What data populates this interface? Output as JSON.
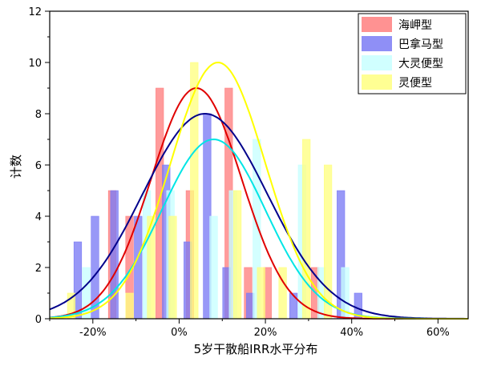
{
  "chart_data": {
    "type": "bar",
    "xlabel": "5岁干散船IRR水平分布",
    "ylabel": "计数",
    "xlim": [
      -30,
      67
    ],
    "ylim": [
      0,
      12
    ],
    "x_ticks": [
      -20,
      0,
      20,
      40,
      60
    ],
    "x_tick_labels": [
      "-20%",
      "0%",
      "20%",
      "40%",
      "60%"
    ],
    "y_ticks": [
      0,
      2,
      4,
      6,
      8,
      10,
      12
    ],
    "y_tick_labels": [
      "0",
      "2",
      "4",
      "6",
      "8",
      "10",
      "12"
    ],
    "bin_width": 8,
    "bin_centers": [
      -24,
      -16,
      -8,
      0,
      8,
      16,
      24,
      32,
      40
    ],
    "legend_position": "top-right",
    "series": [
      {
        "name": "海岬型",
        "color": "#ff7f7f",
        "bars": [
          {
            "x": -15.5,
            "count": 5
          },
          {
            "x": -11.5,
            "count": 4
          },
          {
            "x": -4.5,
            "count": 9
          },
          {
            "x": 2.5,
            "count": 5
          },
          {
            "x": 11.5,
            "count": 9
          },
          {
            "x": 16,
            "count": 2
          },
          {
            "x": 20.5,
            "count": 2
          },
          {
            "x": 31.5,
            "count": 2
          }
        ],
        "curve": {
          "mean": 4,
          "sd": 10.5,
          "peak": 9,
          "color": "#e00000"
        }
      },
      {
        "name": "巴拿马型",
        "color": "#7b7bf5",
        "bars": [
          {
            "x": -23.5,
            "count": 3
          },
          {
            "x": -19.5,
            "count": 4
          },
          {
            "x": -15,
            "count": 5
          },
          {
            "x": -9.5,
            "count": 4
          },
          {
            "x": -3,
            "count": 6
          },
          {
            "x": 2,
            "count": 3
          },
          {
            "x": 6.5,
            "count": 8
          },
          {
            "x": 11,
            "count": 2
          },
          {
            "x": 16.5,
            "count": 1
          },
          {
            "x": 26.5,
            "count": 1
          },
          {
            "x": 37.5,
            "count": 5
          },
          {
            "x": 41.5,
            "count": 1
          }
        ],
        "curve": {
          "mean": 6,
          "sd": 14.5,
          "peak": 8,
          "color": "#00008b"
        }
      },
      {
        "name": "大灵便型",
        "color": "#c8ffff",
        "bars": [
          {
            "x": -21.5,
            "count": 2
          },
          {
            "x": -7.5,
            "count": 5
          },
          {
            "x": -2,
            "count": 5
          },
          {
            "x": 8,
            "count": 4
          },
          {
            "x": 12.5,
            "count": 5
          },
          {
            "x": 18,
            "count": 7
          },
          {
            "x": 28.5,
            "count": 6
          },
          {
            "x": 33,
            "count": 2
          },
          {
            "x": 38.5,
            "count": 2
          }
        ],
        "curve": {
          "mean": 8,
          "sd": 12,
          "peak": 7,
          "color": "#00e5e5"
        }
      },
      {
        "name": "灵便型",
        "color": "#ffff80",
        "bars": [
          {
            "x": -25,
            "count": 1
          },
          {
            "x": -11.5,
            "count": 1
          },
          {
            "x": -6.5,
            "count": 4
          },
          {
            "x": -1.5,
            "count": 4
          },
          {
            "x": 3.5,
            "count": 10
          },
          {
            "x": 13.5,
            "count": 5
          },
          {
            "x": 19,
            "count": 2
          },
          {
            "x": 24,
            "count": 2
          },
          {
            "x": 29.5,
            "count": 7
          },
          {
            "x": 34.5,
            "count": 6
          }
        ],
        "curve": {
          "mean": 9,
          "sd": 11,
          "peak": 10,
          "color": "#ffff00"
        }
      }
    ]
  }
}
